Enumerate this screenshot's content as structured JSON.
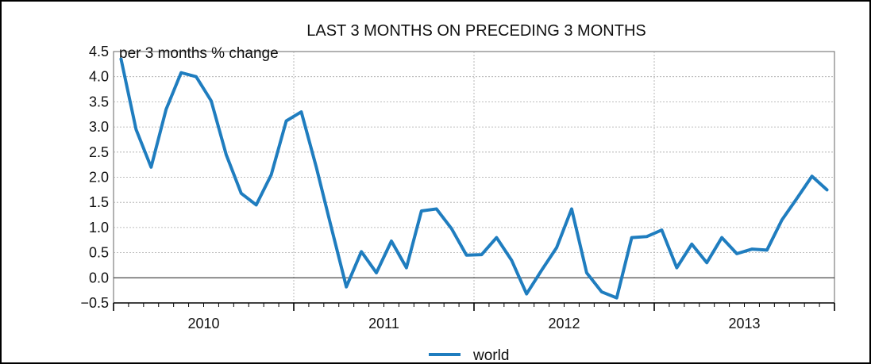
{
  "chart_data": {
    "type": "line",
    "title": "LAST 3 MONTHS ON PRECEDING 3 MONTHS",
    "unit_label": "per 3 months % change",
    "ylim": [
      -0.5,
      4.5
    ],
    "y_ticks": [
      "4.5",
      "4.0",
      "3.5",
      "3.0",
      "2.5",
      "2.0",
      "1.5",
      "1.0",
      "0.5",
      "0.0",
      "−0.5"
    ],
    "y_tick_values": [
      4.5,
      4.0,
      3.5,
      3.0,
      2.5,
      2.0,
      1.5,
      1.0,
      0.5,
      0.0,
      -0.5
    ],
    "x_years": [
      "2010",
      "2011",
      "2012",
      "2013"
    ],
    "x_month_start": "2010-01",
    "x_month_end": "2013-12",
    "grid": true,
    "legend": {
      "placement": "bottom-center",
      "entries": [
        "world"
      ]
    },
    "series": [
      {
        "name": "world",
        "color": "#1f7dbf",
        "x": [
          "2010-01",
          "2010-02",
          "2010-03",
          "2010-04",
          "2010-05",
          "2010-06",
          "2010-07",
          "2010-08",
          "2010-09",
          "2010-10",
          "2010-11",
          "2010-12",
          "2011-01",
          "2011-02",
          "2011-03",
          "2011-04",
          "2011-05",
          "2011-06",
          "2011-07",
          "2011-08",
          "2011-09",
          "2011-10",
          "2011-11",
          "2011-12",
          "2012-01",
          "2012-02",
          "2012-03",
          "2012-04",
          "2012-05",
          "2012-06",
          "2012-07",
          "2012-08",
          "2012-09",
          "2012-10",
          "2012-11",
          "2012-12",
          "2013-01",
          "2013-02",
          "2013-03",
          "2013-04",
          "2013-05",
          "2013-06",
          "2013-07",
          "2013-08",
          "2013-09",
          "2013-10",
          "2013-11",
          "2013-12"
        ],
        "values": [
          4.35,
          2.95,
          2.2,
          3.35,
          4.08,
          4.0,
          3.52,
          2.45,
          1.68,
          1.45,
          2.05,
          3.12,
          3.3,
          2.2,
          1.0,
          -0.18,
          0.52,
          0.1,
          0.73,
          0.2,
          1.33,
          1.37,
          0.98,
          0.45,
          0.46,
          0.8,
          0.35,
          -0.32,
          0.15,
          0.6,
          1.37,
          0.1,
          -0.28,
          -0.4,
          0.8,
          0.82,
          0.95,
          0.2,
          0.67,
          0.3,
          0.8,
          0.48,
          0.57,
          0.55,
          1.15,
          1.58,
          2.02,
          1.75
        ]
      }
    ]
  }
}
